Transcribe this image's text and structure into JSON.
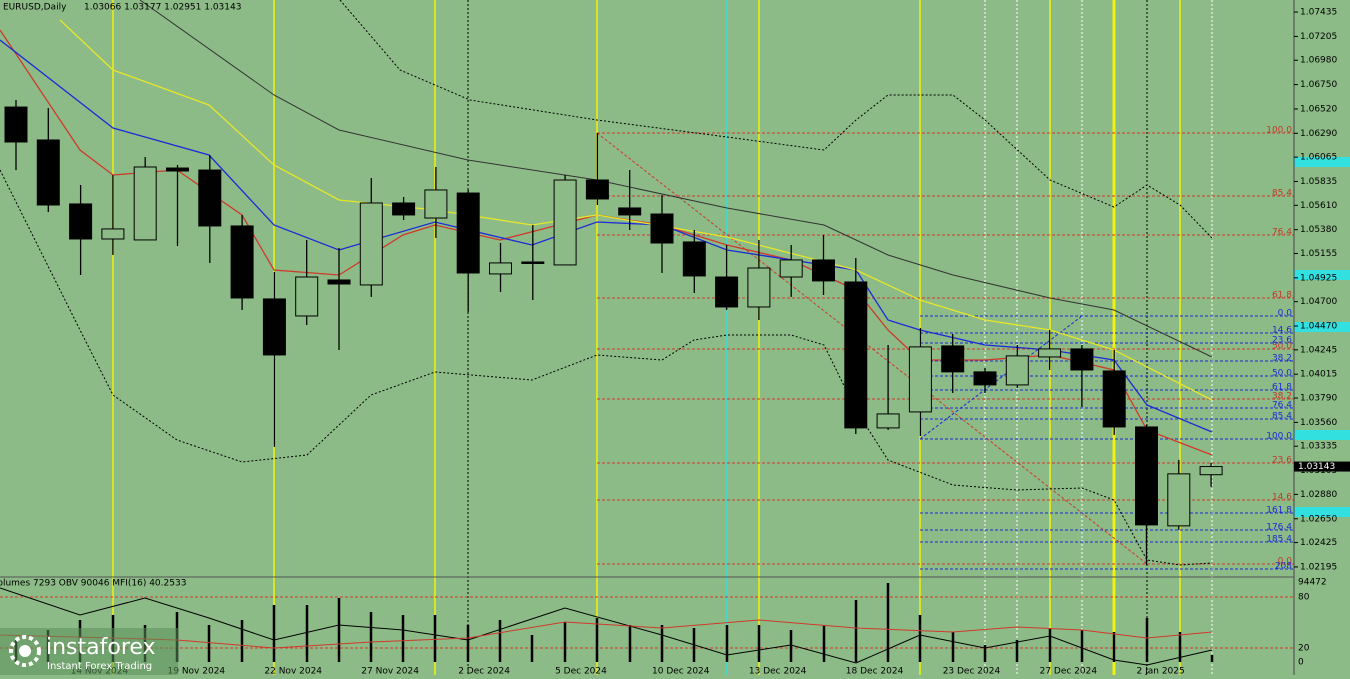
{
  "header": {
    "symbol": "EURUSD,Daily",
    "ohlc": "1.03066 1.03177 1.02951 1.03143"
  },
  "indicator_header": "Volumes 7293  OBV 90046  MFI(16) 40.2533",
  "indicator_axis": [
    "94472",
    "80",
    "20",
    "0"
  ],
  "fib_red": [
    "100.0",
    "85.4",
    "76.4",
    "61.8",
    "50.0",
    "38.2",
    "23.6",
    "14.6",
    "0.0"
  ],
  "fib_blue": [
    "0.0",
    "14.6",
    "23.6",
    "38.2",
    "50.0",
    "61.8",
    "76.4",
    "85.4",
    "100.0",
    "161.8",
    "176.4",
    "185.4",
    "208"
  ],
  "logo": {
    "name": "instaforex",
    "tagline": "Instant Forex Trading"
  },
  "chart_data": {
    "type": "candlestick",
    "categories": [
      null,
      null,
      "14 Nov 2024",
      null,
      null,
      "19 Nov 2024",
      null,
      null,
      "22 Nov 2024",
      null,
      null,
      "27 Nov 2024",
      null,
      null,
      "2 Dec 2024",
      null,
      null,
      "5 Dec 2024",
      null,
      null,
      "10 Dec 2024",
      null,
      null,
      "13 Dec 2024",
      null,
      null,
      "18 Dec 2024",
      null,
      null,
      "23 Dec 2024",
      null,
      null,
      "27 Dec 2024",
      null,
      null,
      "2 Jan 2025",
      null,
      null
    ],
    "open": [
      1.06538,
      1.06227,
      1.05623,
      1.05292,
      1.05283,
      1.05962,
      1.05943,
      1.05415,
      1.04726,
      1.04565,
      1.04905,
      1.04858,
      1.05632,
      1.0549,
      1.05726,
      1.04962,
      1.05075,
      1.05047,
      1.05849,
      1.05585,
      1.05528,
      1.05264,
      1.04933,
      1.0465,
      1.04933,
      1.05094,
      1.04886,
      1.03508,
      1.03659,
      1.04282,
      1.04037,
      1.03914,
      1.04178,
      1.04254,
      1.04046,
      1.03517,
      1.02583,
      1.03066
    ],
    "high": [
      1.06604,
      1.06529,
      1.05802,
      1.05896,
      1.06066,
      1.05991,
      1.06085,
      1.05519,
      1.04981,
      1.05283,
      1.05207,
      1.05868,
      1.05689,
      1.05972,
      1.05755,
      1.05254,
      1.05424,
      1.05896,
      1.06293,
      1.05943,
      1.05707,
      1.05377,
      1.05235,
      1.05283,
      1.05235,
      1.0533,
      1.05113,
      1.04291,
      1.04452,
      1.04395,
      1.04074,
      1.04291,
      1.04433,
      1.04291,
      1.04244,
      1.03536,
      1.03206,
      1.03177
    ],
    "low": [
      1.05943,
      1.05547,
      1.04952,
      1.05141,
      1.05283,
      1.05226,
      1.05066,
      1.04622,
      1.03329,
      1.0448,
      1.04244,
      1.04745,
      1.05471,
      1.05302,
      1.04603,
      1.04792,
      1.04716,
      1.05047,
      1.05613,
      1.05377,
      1.04971,
      1.04782,
      1.04622,
      1.04527,
      1.04745,
      1.04763,
      1.03451,
      1.03489,
      1.03432,
      1.03838,
      1.03838,
      1.03886,
      1.04055,
      1.03706,
      1.03442,
      1.02215,
      1.02545,
      1.02951
    ],
    "close": [
      1.06208,
      1.05613,
      1.05292,
      1.05387,
      1.05972,
      1.05934,
      1.05415,
      1.04735,
      1.04197,
      1.04933,
      1.04867,
      1.05632,
      1.05519,
      1.05755,
      1.04971,
      1.05066,
      1.05066,
      1.05849,
      1.0567,
      1.05519,
      1.05254,
      1.04943,
      1.0465,
      1.05018,
      1.05094,
      1.04896,
      1.03508,
      1.0364,
      1.04273,
      1.04037,
      1.03914,
      1.04188,
      1.04254,
      1.04055,
      1.03517,
      1.02592,
      1.03074,
      1.03143
    ],
    "ylim": [
      1.021,
      1.0753
    ],
    "yticks": [
      1.07435,
      1.07205,
      {
        "value": 1.0698,
        "label": "1.06980"
      },
      {
        "value": 1.0675,
        "label": "1.06750"
      },
      {
        "value": 1.0652,
        "label": "1.06520"
      },
      {
        "value": 1.0629,
        "label": "1.06290"
      },
      1.06065,
      1.05835,
      {
        "value": 1.0561,
        "label": "1.05610"
      },
      {
        "value": 1.0538,
        "label": "1.05380"
      },
      1.05155,
      1.04925,
      {
        "value": 1.047,
        "label": "1.04700"
      },
      {
        "value": 1.0447,
        "label": "1.04470"
      },
      1.04245,
      1.04015,
      {
        "value": 1.0379,
        "label": "1.03790"
      },
      {
        "value": 1.0356,
        "label": "1.03560"
      },
      1.03335,
      1.03105,
      {
        "value": 1.0288,
        "label": "1.02880"
      },
      {
        "value": 1.0265,
        "label": "1.02650"
      },
      1.02425,
      1.02195
    ],
    "up_color": "#8cbb87",
    "down_color": "#000000"
  }
}
